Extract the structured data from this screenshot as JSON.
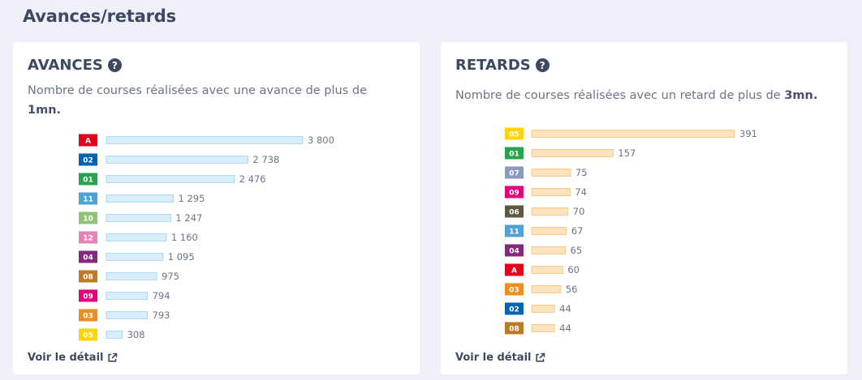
{
  "page": {
    "title": "Avances/retards"
  },
  "avances": {
    "title": "AVANCES",
    "help_glyph": "?",
    "desc_text": "Nombre de courses réalisées avec une avance de plus de ",
    "desc_bold": "1mn.",
    "link_label": "Voir le détail",
    "chart_data": {
      "type": "bar",
      "orientation": "horizontal",
      "categories": [
        "A",
        "02",
        "01",
        "11",
        "10",
        "12",
        "04",
        "08",
        "09",
        "03",
        "05"
      ],
      "values": [
        3800,
        2738,
        2476,
        1295,
        1247,
        1160,
        1095,
        975,
        794,
        793,
        308
      ],
      "value_labels": [
        "3 800",
        "2 738",
        "2 476",
        "1 295",
        "1 247",
        "1 160",
        "1 095",
        "975",
        "794",
        "793",
        "308"
      ],
      "category_colors": [
        "#e2001a",
        "#0064b0",
        "#26a34b",
        "#4fa2d6",
        "#8fc477",
        "#e584b4",
        "#84287e",
        "#bb7a25",
        "#e4007d",
        "#ee8e1c",
        "#ffd400"
      ],
      "bar_fill": "#d9eef9",
      "bar_stroke": "#a9d8f1",
      "xlim": [
        0,
        3800
      ]
    }
  },
  "retards": {
    "title": "RETARDS",
    "help_glyph": "?",
    "desc_text": "Nombre de courses réalisées avec un retard de plus de ",
    "desc_bold": "3mn.",
    "link_label": "Voir le détail",
    "chart_data": {
      "type": "bar",
      "orientation": "horizontal",
      "categories": [
        "05",
        "01",
        "07",
        "09",
        "06",
        "11",
        "04",
        "A",
        "03",
        "02",
        "08"
      ],
      "values": [
        391,
        157,
        75,
        74,
        70,
        67,
        65,
        60,
        56,
        44,
        44
      ],
      "value_labels": [
        "391",
        "157",
        "75",
        "74",
        "70",
        "67",
        "65",
        "60",
        "56",
        "44",
        "44"
      ],
      "category_colors": [
        "#ffd400",
        "#26a34b",
        "#8d98bf",
        "#e4007d",
        "#5d5a3e",
        "#4fa2d6",
        "#84287e",
        "#e2001a",
        "#ee8e1c",
        "#0064b0",
        "#bb7a25"
      ],
      "bar_fill": "#fde3bd",
      "bar_stroke": "#f9c986",
      "xlim": [
        0,
        391
      ]
    }
  }
}
